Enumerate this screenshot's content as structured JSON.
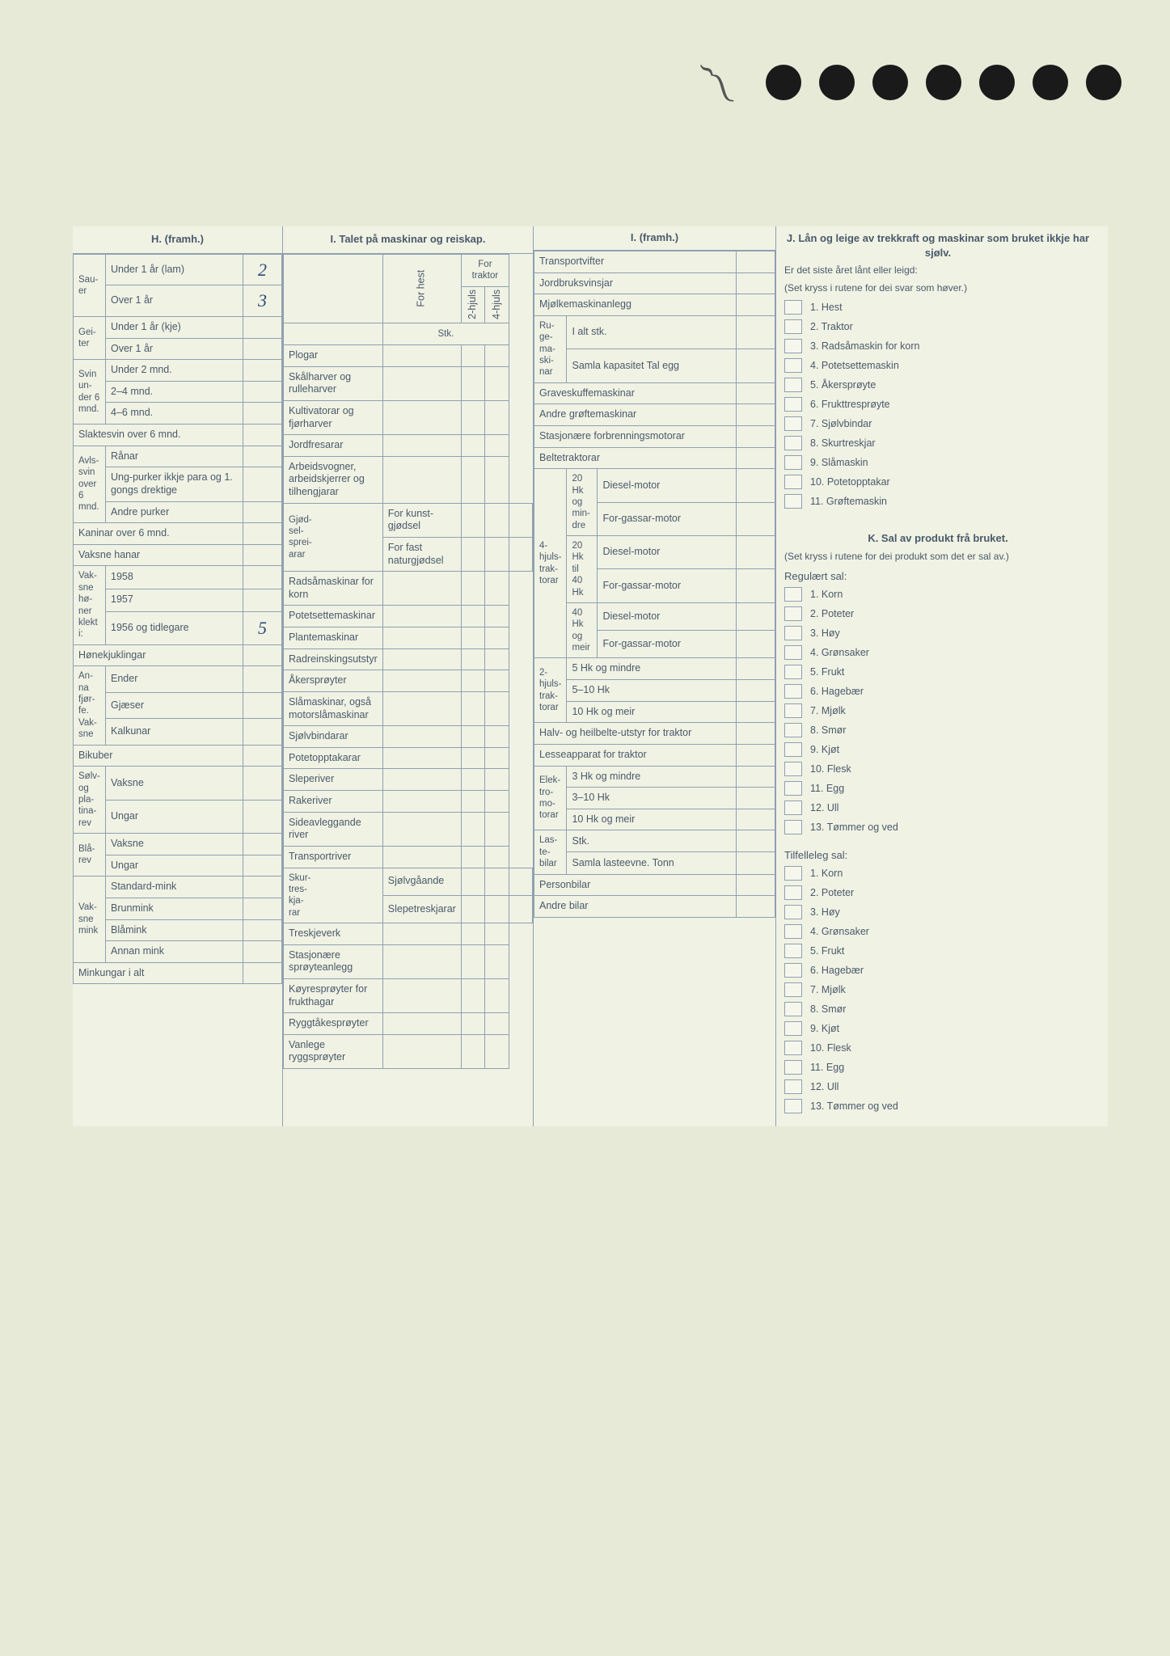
{
  "holes_count": 7,
  "H": {
    "header": "H. (framh.)",
    "groups": [
      {
        "side": "Sau-er",
        "rows": [
          {
            "label": "Under 1 år (lam)",
            "value": "2"
          },
          {
            "label": "Over 1 år",
            "value": "3"
          }
        ]
      },
      {
        "side": "Gei-ter",
        "rows": [
          {
            "label": "Under 1 år (kje)",
            "value": ""
          },
          {
            "label": "Over 1 år",
            "value": ""
          }
        ]
      },
      {
        "side": "Svin un-der 6 mnd.",
        "rows": [
          {
            "label": "Under 2 mnd.",
            "value": ""
          },
          {
            "label": "2–4 mnd.",
            "value": ""
          },
          {
            "label": "4–6 mnd.",
            "value": ""
          }
        ]
      }
    ],
    "single": [
      {
        "label": "Slaktesvin over 6 mnd.",
        "value": ""
      }
    ],
    "avlssvin": {
      "side": "Avls-svin over 6 mnd.",
      "rows": [
        {
          "label": "Rånar",
          "value": ""
        },
        {
          "label": "Ung-purker ikkje para og 1. gongs drektige",
          "value": ""
        },
        {
          "label": "Andre purker",
          "value": ""
        }
      ]
    },
    "single2": [
      {
        "label": "Kaninar over 6 mnd.",
        "value": ""
      },
      {
        "label": "Vaksne hanar",
        "value": ""
      }
    ],
    "honer": {
      "side": "Vak-sne hø-ner klekt i:",
      "rows": [
        {
          "label": "1958",
          "value": ""
        },
        {
          "label": "1957",
          "value": ""
        },
        {
          "label": "1956 og tidlegare",
          "value": "5"
        }
      ]
    },
    "single3": [
      {
        "label": "Hønekjuklingar",
        "value": ""
      }
    ],
    "fjorfe": {
      "side": "An-na fjør-fe. Vak-sne",
      "rows": [
        {
          "label": "Ender",
          "value": ""
        },
        {
          "label": "Gjæser",
          "value": ""
        },
        {
          "label": "Kalkunar",
          "value": ""
        }
      ]
    },
    "single4": [
      {
        "label": "Bikuber",
        "value": ""
      }
    ],
    "rev1": {
      "side": "Sølv- og pla-tina-rev",
      "rows": [
        {
          "label": "Vaksne",
          "value": ""
        },
        {
          "label": "Ungar",
          "value": ""
        }
      ]
    },
    "rev2": {
      "side": "Blå-rev",
      "rows": [
        {
          "label": "Vaksne",
          "value": ""
        },
        {
          "label": "Ungar",
          "value": ""
        }
      ]
    },
    "mink": {
      "side": "Vak-sne mink",
      "rows": [
        {
          "label": "Standard-mink",
          "value": ""
        },
        {
          "label": "Brunmink",
          "value": ""
        },
        {
          "label": "Blåmink",
          "value": ""
        },
        {
          "label": "Annan mink",
          "value": ""
        }
      ]
    },
    "single5": [
      {
        "label": "Minkungar i alt",
        "value": ""
      }
    ]
  },
  "I1": {
    "header": "I. Talet på maskinar og reiskap.",
    "col_heads": {
      "hest": "For hest",
      "trak": "For traktor",
      "h2": "2-hjuls",
      "h4": "4-hjuls",
      "stk": "Stk."
    },
    "rows": [
      {
        "label": "Plogar"
      },
      {
        "label": "Skålharver og rulleharver"
      },
      {
        "label": "Kultivatorar og fjørharver"
      },
      {
        "label": "Jordfresarar"
      },
      {
        "label": "Arbeidsvogner, arbeidskjerrer og tilhengjarar"
      }
    ],
    "gjodsel": {
      "side": "Gjød-sel-sprei-arar",
      "rows": [
        {
          "label": "For kunst-gjødsel"
        },
        {
          "label": "For fast naturgjødsel"
        }
      ]
    },
    "rows2": [
      {
        "label": "Radsåmaskinar for korn"
      },
      {
        "label": "Potetsettemaskinar"
      },
      {
        "label": "Plantemaskinar"
      },
      {
        "label": "Radreinskingsutstyr"
      },
      {
        "label": "Åkersprøyter"
      },
      {
        "label": "Slåmaskinar, også motorslåmaskinar"
      },
      {
        "label": "Sjølvbindarar"
      },
      {
        "label": "Potetopptakarar"
      },
      {
        "label": "Sleperiver"
      },
      {
        "label": "Rakeriver"
      },
      {
        "label": "Sideavleggande river"
      },
      {
        "label": "Transportriver"
      }
    ],
    "skurtresk": {
      "side": "Skur-tres-kja-rar",
      "rows": [
        {
          "label": "Sjølvgåande"
        },
        {
          "label": "Slepetreskjarar"
        }
      ]
    },
    "rows3": [
      {
        "label": "Treskjeverk"
      },
      {
        "label": "Stasjonære sprøyteanlegg"
      },
      {
        "label": "Køyresprøyter for frukthagar"
      },
      {
        "label": "Ryggtåkesprøyter"
      },
      {
        "label": "Vanlege ryggsprøyter"
      }
    ]
  },
  "I2": {
    "header": "I. (framh.)",
    "rows_top": [
      {
        "label": "Transportvifter"
      },
      {
        "label": "Jordbruksvinsjar"
      },
      {
        "label": "Mjølkemaskinanlegg"
      }
    ],
    "rugem": {
      "side": "Ru-ge-ma-ski-nar",
      "rows": [
        {
          "label": "I alt stk."
        },
        {
          "label": "Samla kapasitet Tal egg"
        }
      ]
    },
    "rows_mid": [
      {
        "label": "Graveskuffemaskinar"
      },
      {
        "label": "Andre grøftemaskinar"
      },
      {
        "label": "Stasjonære forbrenningsmotorar"
      },
      {
        "label": "Beltetraktorar"
      }
    ],
    "hjuls4": {
      "side": "4-hjuls-trak-torar",
      "groups": [
        {
          "hk": "20 Hk og min-dre",
          "rows": [
            "Diesel-motor",
            "For-gassar-motor"
          ]
        },
        {
          "hk": "20 Hk til 40 Hk",
          "rows": [
            "Diesel-motor",
            "For-gassar-motor"
          ]
        },
        {
          "hk": "40 Hk og meir",
          "rows": [
            "Diesel-motor",
            "For-gassar-motor"
          ]
        }
      ]
    },
    "hjuls2": {
      "side": "2-hjuls-trak-torar",
      "rows": [
        {
          "label": "5 Hk og mindre"
        },
        {
          "label": "5–10 Hk"
        },
        {
          "label": "10 Hk og meir"
        }
      ]
    },
    "rows_bot": [
      {
        "label": "Halv- og heilbelte-utstyr for traktor"
      },
      {
        "label": "Lesseapparat for traktor"
      }
    ],
    "elektro": {
      "side": "Elek-tro-mo-torar",
      "rows": [
        {
          "label": "3 Hk og mindre"
        },
        {
          "label": "3–10 Hk"
        },
        {
          "label": "10 Hk og meir"
        }
      ]
    },
    "laste": {
      "side": "Las-te-bilar",
      "rows": [
        {
          "label": "Stk."
        },
        {
          "label": "Samla lasteevne. Tonn"
        }
      ]
    },
    "rows_end": [
      {
        "label": "Personbilar"
      },
      {
        "label": "Andre bilar"
      }
    ]
  },
  "J": {
    "title": "J. Lån og leige av trekkraft og maskinar som bruket ikkje har sjølv.",
    "sub": "Er det siste året lånt eller leigd:",
    "sub2": "(Set kryss i rutene for dei svar som høver.)",
    "items": [
      "1. Hest",
      "2. Traktor",
      "3. Radsåmaskin for korn",
      "4. Potetsettemaskin",
      "5. Åkersprøyte",
      "6. Frukttresprøyte",
      "7. Sjølvbindar",
      "8. Skurtreskjar",
      "9. Slåmaskin",
      "10. Potetopptakar",
      "11. Grøftemaskin"
    ]
  },
  "K": {
    "title": "K. Sal av produkt frå bruket.",
    "sub": "(Set kryss i rutene for dei produkt som det er sal av.)",
    "reg_head": "Regulært sal:",
    "reg_items": [
      "1. Korn",
      "2. Poteter",
      "3. Høy",
      "4. Grønsaker",
      "5. Frukt",
      "6. Hagebær",
      "7. Mjølk",
      "8. Smør",
      "9. Kjøt",
      "10. Flesk",
      "11. Egg",
      "12. Ull",
      "13. Tømmer og ved"
    ],
    "til_head": "Tilfelleleg sal:",
    "til_items": [
      "1. Korn",
      "2. Poteter",
      "3. Høy",
      "4. Grønsaker",
      "5. Frukt",
      "6. Hagebær",
      "7. Mjølk",
      "8. Smør",
      "9. Kjøt",
      "10. Flesk",
      "11. Egg",
      "12. Ull",
      "13. Tømmer og ved"
    ]
  }
}
